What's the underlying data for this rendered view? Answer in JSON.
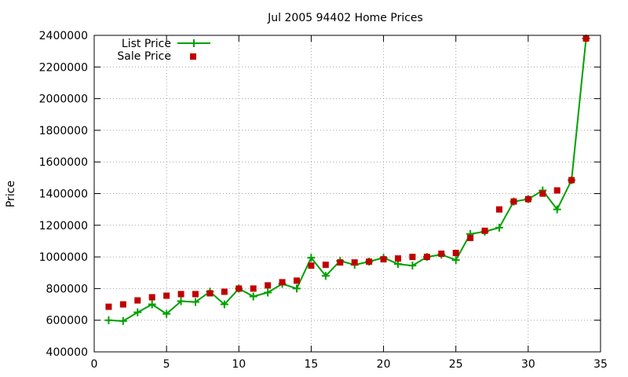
{
  "chart_data": {
    "type": "line",
    "title": "Jul 2005 94402 Home Prices",
    "xlabel": "",
    "ylabel": "Price",
    "xlim": [
      0,
      35
    ],
    "ylim": [
      400000,
      2400000
    ],
    "xticks": [
      "0",
      "5",
      "10",
      "15",
      "20",
      "25",
      "30",
      "35"
    ],
    "yticks": [
      "400000",
      "600000",
      "800000",
      "1000000",
      "1200000",
      "1400000",
      "1600000",
      "1800000",
      "2000000",
      "2200000",
      "2400000"
    ],
    "grid": true,
    "legend_position": "top-left",
    "x": [
      1,
      2,
      3,
      4,
      5,
      6,
      7,
      8,
      9,
      10,
      11,
      12,
      13,
      14,
      15,
      16,
      17,
      18,
      19,
      20,
      21,
      22,
      23,
      24,
      25,
      26,
      27,
      28,
      29,
      30,
      31,
      32,
      33,
      34
    ],
    "series": [
      {
        "name": "List Price",
        "style": "line-plus",
        "color": "#00a000",
        "values": [
          600000,
          595000,
          650000,
          700000,
          640000,
          720000,
          715000,
          780000,
          700000,
          800000,
          750000,
          775000,
          830000,
          800000,
          995000,
          880000,
          975000,
          950000,
          970000,
          995000,
          955000,
          945000,
          1000000,
          1015000,
          980000,
          1145000,
          1160000,
          1185000,
          1350000,
          1365000,
          1420000,
          1300000,
          1485000,
          2380000
        ]
      },
      {
        "name": "Sale Price",
        "style": "square-markers",
        "color": "#c00000",
        "values": [
          685000,
          700000,
          725000,
          745000,
          755000,
          765000,
          765000,
          770000,
          780000,
          800000,
          800000,
          820000,
          840000,
          850000,
          945000,
          950000,
          965000,
          965000,
          970000,
          985000,
          990000,
          1000000,
          1000000,
          1020000,
          1025000,
          1120000,
          1165000,
          1300000,
          1350000,
          1365000,
          1400000,
          1420000,
          1485000,
          2380000
        ]
      }
    ]
  }
}
